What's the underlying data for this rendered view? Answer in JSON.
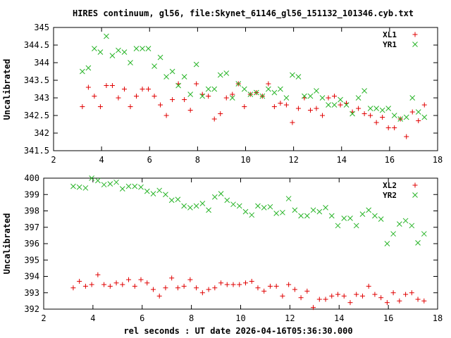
{
  "chart_data": {
    "title": "HIRES continuum, gl56, file:Skynet_61146_gl56_151132_101346.cyb.txt",
    "xlabel": "rel seconds : UT date 2026-04-16T05:36:30.000",
    "colors": {
      "red": "#e00000",
      "green": "#28b428"
    },
    "panels": [
      {
        "type": "scatter",
        "ylabel": "Uncalibrated",
        "xlim": [
          2,
          18
        ],
        "ylim": [
          341.5,
          345
        ],
        "xticks": [
          2,
          4,
          6,
          8,
          10,
          12,
          14,
          16,
          18
        ],
        "yticks": [
          341.5,
          342,
          342.5,
          343,
          343.5,
          344,
          344.5,
          345
        ],
        "ytick_labels": [
          "341.5",
          "342",
          "342.5",
          "343",
          "343.5",
          "344",
          "344.5",
          "345"
        ],
        "series": [
          {
            "name": "XL1",
            "marker": "plus",
            "color_key": "red",
            "x": [
              3.2,
              3.45,
              3.7,
              3.95,
              4.2,
              4.45,
              4.7,
              4.95,
              5.2,
              5.45,
              5.7,
              5.95,
              6.2,
              6.45,
              6.7,
              6.95,
              7.2,
              7.45,
              7.7,
              7.95,
              8.2,
              8.45,
              8.7,
              8.95,
              9.2,
              9.45,
              9.7,
              9.95,
              10.2,
              10.45,
              10.7,
              10.95,
              11.2,
              11.45,
              11.7,
              11.95,
              12.2,
              12.45,
              12.7,
              12.95,
              13.2,
              13.45,
              13.7,
              13.95,
              14.2,
              14.45,
              14.7,
              14.95,
              15.2,
              15.45,
              15.7,
              15.95,
              16.2,
              16.45,
              16.7,
              16.95,
              17.2,
              17.45
            ],
            "y": [
              342.75,
              343.3,
              343.05,
              342.75,
              343.35,
              343.35,
              343.0,
              343.25,
              342.75,
              343.05,
              343.25,
              343.25,
              343.05,
              342.8,
              342.5,
              342.95,
              343.4,
              342.95,
              342.65,
              343.4,
              343.1,
              343.05,
              342.4,
              342.55,
              343.0,
              343.1,
              343.4,
              342.75,
              343.1,
              343.15,
              343.05,
              343.4,
              342.75,
              342.85,
              342.8,
              342.3,
              342.7,
              343.0,
              342.65,
              342.7,
              342.5,
              343.0,
              343.05,
              342.8,
              342.85,
              342.6,
              342.7,
              342.55,
              342.5,
              342.3,
              342.45,
              342.15,
              342.15,
              342.4,
              341.9,
              342.6,
              342.35,
              342.8
            ]
          },
          {
            "name": "YR1",
            "marker": "cross",
            "color_key": "green",
            "x": [
              3.2,
              3.45,
              3.7,
              3.95,
              4.2,
              4.45,
              4.7,
              4.95,
              5.2,
              5.45,
              5.7,
              5.95,
              6.2,
              6.45,
              6.7,
              6.95,
              7.2,
              7.45,
              7.7,
              7.95,
              8.2,
              8.45,
              8.7,
              8.95,
              9.2,
              9.45,
              9.7,
              9.95,
              10.2,
              10.45,
              10.7,
              10.95,
              11.2,
              11.45,
              11.7,
              11.95,
              12.2,
              12.45,
              12.7,
              12.95,
              13.2,
              13.45,
              13.7,
              13.95,
              14.2,
              14.45,
              14.7,
              14.95,
              15.2,
              15.45,
              15.7,
              15.95,
              16.2,
              16.45,
              16.7,
              16.95,
              17.2,
              17.45
            ],
            "y": [
              343.75,
              343.85,
              344.4,
              344.3,
              344.75,
              344.2,
              344.35,
              344.3,
              344.0,
              344.4,
              344.4,
              344.4,
              343.9,
              344.15,
              343.6,
              343.75,
              343.35,
              343.6,
              343.1,
              343.95,
              343.05,
              343.25,
              343.25,
              343.65,
              343.7,
              343.0,
              343.4,
              343.25,
              343.1,
              343.15,
              343.05,
              343.25,
              343.15,
              343.25,
              343.0,
              343.65,
              343.6,
              343.05,
              343.05,
              343.2,
              343.0,
              342.8,
              342.8,
              342.95,
              342.8,
              342.55,
              343.0,
              343.2,
              342.7,
              342.7,
              342.65,
              342.7,
              342.5,
              342.4,
              342.45,
              343.0,
              342.6,
              342.45
            ]
          }
        ]
      },
      {
        "type": "scatter",
        "ylabel": "Uncalibrated",
        "xlim": [
          2,
          18
        ],
        "ylim": [
          392,
          400
        ],
        "xticks": [
          2,
          4,
          6,
          8,
          10,
          12,
          14,
          16,
          18
        ],
        "yticks": [
          392,
          393,
          394,
          395,
          396,
          397,
          398,
          399,
          400
        ],
        "ytick_labels": [
          "392",
          "393",
          "394",
          "395",
          "396",
          "397",
          "398",
          "399",
          "400"
        ],
        "series": [
          {
            "name": "XL2",
            "marker": "plus",
            "color_key": "red",
            "x": [
              3.2,
              3.45,
              3.7,
              3.95,
              4.2,
              4.45,
              4.7,
              4.95,
              5.2,
              5.45,
              5.7,
              5.95,
              6.2,
              6.45,
              6.7,
              6.95,
              7.2,
              7.45,
              7.7,
              7.95,
              8.2,
              8.45,
              8.7,
              8.95,
              9.2,
              9.45,
              9.7,
              9.95,
              10.2,
              10.45,
              10.7,
              10.95,
              11.2,
              11.45,
              11.7,
              11.95,
              12.2,
              12.45,
              12.7,
              12.95,
              13.2,
              13.45,
              13.7,
              13.95,
              14.2,
              14.45,
              14.7,
              14.95,
              15.2,
              15.45,
              15.7,
              15.95,
              16.2,
              16.45,
              16.7,
              16.95,
              17.2,
              17.45
            ],
            "y": [
              393.3,
              393.7,
              393.4,
              393.5,
              394.1,
              393.5,
              393.4,
              393.6,
              393.5,
              393.8,
              393.4,
              393.8,
              393.6,
              393.2,
              392.8,
              393.3,
              393.9,
              393.3,
              393.4,
              393.8,
              393.3,
              393.0,
              393.2,
              393.3,
              393.6,
              393.5,
              393.5,
              393.5,
              393.6,
              393.7,
              393.3,
              393.1,
              393.4,
              393.4,
              392.8,
              393.5,
              393.2,
              392.7,
              393.1,
              392.1,
              392.6,
              392.6,
              392.8,
              392.9,
              392.8,
              392.4,
              392.9,
              392.8,
              393.4,
              392.9,
              392.7,
              392.4,
              393.0,
              392.5,
              392.9,
              393.0,
              392.6,
              392.5
            ]
          },
          {
            "name": "YR2",
            "marker": "cross",
            "color_key": "green",
            "x": [
              3.2,
              3.45,
              3.7,
              3.95,
              4.2,
              4.45,
              4.7,
              4.95,
              5.2,
              5.45,
              5.7,
              5.95,
              6.2,
              6.45,
              6.7,
              6.95,
              7.2,
              7.45,
              7.7,
              7.95,
              8.2,
              8.45,
              8.7,
              8.95,
              9.2,
              9.45,
              9.7,
              9.95,
              10.2,
              10.45,
              10.7,
              10.95,
              11.2,
              11.45,
              11.7,
              11.95,
              12.2,
              12.45,
              12.7,
              12.95,
              13.2,
              13.45,
              13.7,
              13.95,
              14.2,
              14.45,
              14.7,
              14.95,
              15.2,
              15.45,
              15.7,
              15.95,
              16.2,
              16.45,
              16.7,
              16.95,
              17.2,
              17.45
            ],
            "y": [
              399.5,
              399.45,
              399.4,
              400.0,
              399.85,
              399.6,
              399.65,
              399.75,
              399.35,
              399.5,
              399.5,
              399.45,
              399.2,
              399.05,
              399.25,
              399.0,
              398.65,
              398.7,
              398.3,
              398.2,
              398.3,
              398.45,
              398.05,
              398.85,
              399.05,
              398.65,
              398.4,
              398.3,
              397.95,
              397.75,
              398.3,
              398.2,
              398.25,
              397.85,
              397.9,
              398.75,
              398.05,
              397.7,
              397.7,
              398.05,
              397.95,
              398.2,
              397.7,
              397.1,
              397.55,
              397.55,
              397.1,
              397.8,
              398.05,
              397.7,
              397.5,
              396.0,
              396.6,
              397.2,
              397.4,
              397.1,
              396.05,
              396.6
            ]
          }
        ]
      }
    ]
  }
}
